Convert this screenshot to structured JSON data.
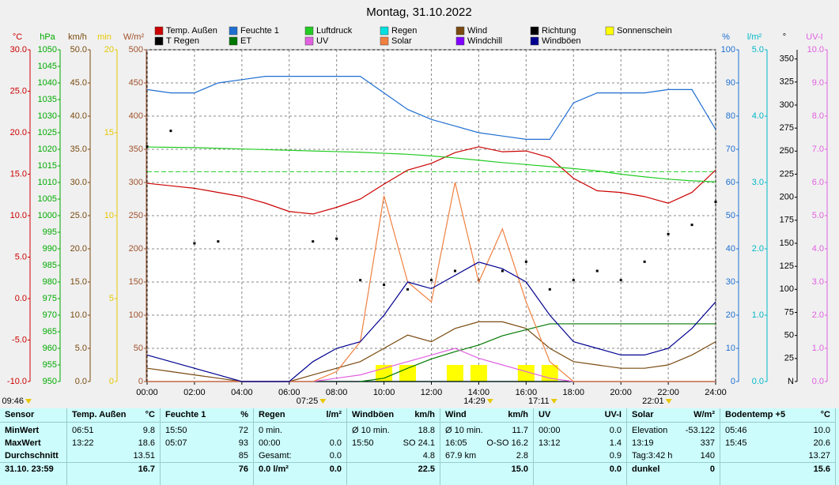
{
  "chart_data": {
    "type": "line",
    "title": "Montag, 31.10.2022",
    "x": [
      0,
      1,
      2,
      3,
      4,
      5,
      6,
      7,
      8,
      9,
      10,
      11,
      12,
      13,
      14,
      15,
      16,
      17,
      18,
      19,
      20,
      21,
      22,
      23,
      24
    ],
    "xlim": [
      0,
      24
    ],
    "xticks": [
      {
        "value": 0,
        "label": "00:00"
      },
      {
        "value": 2,
        "label": "02:00"
      },
      {
        "value": 4,
        "label": "04:00"
      },
      {
        "value": 6,
        "label": "06:00"
      },
      {
        "value": 8,
        "label": "08:00"
      },
      {
        "value": 10,
        "label": "10:00"
      },
      {
        "value": 12,
        "label": "12:00"
      },
      {
        "value": 14,
        "label": "14:00"
      },
      {
        "value": 16,
        "label": "16:00"
      },
      {
        "value": 18,
        "label": "18:00"
      },
      {
        "value": 20,
        "label": "20:00"
      },
      {
        "value": 22,
        "label": "22:00"
      },
      {
        "value": 24,
        "label": "24:00"
      }
    ],
    "grid": true,
    "axes": [
      {
        "id": "temp",
        "side": "left",
        "label": "°C",
        "color": "#cc0000",
        "lim": [
          -10,
          30
        ],
        "ticks": [
          {
            "value": -10,
            "label": "-10.0"
          },
          {
            "value": -5,
            "label": "-5.0"
          },
          {
            "value": 0,
            "label": "0.0"
          },
          {
            "value": 5,
            "label": "5.0"
          },
          {
            "value": 10,
            "label": "10.0"
          },
          {
            "value": 15,
            "label": "15.0"
          },
          {
            "value": 20,
            "label": "20.0"
          },
          {
            "value": 25,
            "label": "25.0"
          },
          {
            "value": 30,
            "label": "30.0"
          }
        ]
      },
      {
        "id": "press",
        "side": "left",
        "label": "hPa",
        "color": "#00aa00",
        "lim": [
          950,
          1050
        ],
        "ticks": [
          950,
          955,
          960,
          965,
          970,
          975,
          980,
          985,
          990,
          995,
          1000,
          1005,
          1010,
          1015,
          1020,
          1025,
          1030,
          1035,
          1040,
          1045,
          1050
        ],
        "reference": 1013.25
      },
      {
        "id": "speed",
        "side": "left",
        "label": "km/h",
        "color": "#7a4a10",
        "lim": [
          0,
          50
        ],
        "ticks": [
          {
            "value": 0,
            "label": "0.0"
          },
          {
            "value": 5,
            "label": "5.0"
          },
          {
            "value": 10,
            "label": "10.0"
          },
          {
            "value": 15,
            "label": "15.0"
          },
          {
            "value": 20,
            "label": "20.0"
          },
          {
            "value": 25,
            "label": "25.0"
          },
          {
            "value": 30,
            "label": "30.0"
          },
          {
            "value": 35,
            "label": "35.0"
          },
          {
            "value": 40,
            "label": "40.0"
          },
          {
            "value": 45,
            "label": "45.0"
          },
          {
            "value": 50,
            "label": "50.0"
          }
        ]
      },
      {
        "id": "min",
        "side": "left",
        "label": "min",
        "color": "#e6c800",
        "lim": [
          0,
          20
        ],
        "ticks": [
          0,
          5,
          10,
          15,
          20
        ]
      },
      {
        "id": "solar",
        "side": "left",
        "label": "W/m²",
        "color": "#a0522d",
        "lim": [
          0,
          500
        ],
        "ticks": [
          0,
          50,
          100,
          150,
          200,
          250,
          300,
          350,
          400,
          450,
          500
        ]
      },
      {
        "id": "hum",
        "side": "right",
        "label": "%",
        "color": "#1e6fd0",
        "lim": [
          0,
          100
        ],
        "ticks": [
          0,
          10,
          20,
          30,
          40,
          50,
          60,
          70,
          80,
          90,
          100
        ],
        "grid": true
      },
      {
        "id": "rain",
        "side": "right",
        "label": "l/m²",
        "color": "#00b8c8",
        "lim": [
          0,
          5
        ],
        "ticks": [
          {
            "value": 0,
            "label": "0.0"
          },
          {
            "value": 1,
            "label": "1.0"
          },
          {
            "value": 2,
            "label": "2.0"
          },
          {
            "value": 3,
            "label": "3.0"
          },
          {
            "value": 4,
            "label": "4.0"
          },
          {
            "value": 5,
            "label": "5.0"
          }
        ]
      },
      {
        "id": "dir",
        "side": "right",
        "label": "°",
        "color": "#000000",
        "lim": [
          0,
          360
        ],
        "ticks": [
          {
            "value": 0,
            "label": "N"
          },
          25,
          50,
          75,
          100,
          125,
          150,
          175,
          200,
          225,
          250,
          275,
          300,
          325,
          350
        ]
      },
      {
        "id": "uv",
        "side": "right",
        "label": "UV-I",
        "color": "#e060e0",
        "lim": [
          0,
          10
        ],
        "ticks": [
          {
            "value": 0,
            "label": "0.0"
          },
          {
            "value": 1,
            "label": "1.0"
          },
          {
            "value": 2,
            "label": "2.0"
          },
          {
            "value": 3,
            "label": "3.0"
          },
          {
            "value": 4,
            "label": "4.0"
          },
          {
            "value": 5,
            "label": "5.0"
          },
          {
            "value": 6,
            "label": "6.0"
          },
          {
            "value": 7,
            "label": "7.0"
          },
          {
            "value": 8,
            "label": "8.0"
          },
          {
            "value": 9,
            "label": "9.0"
          },
          {
            "value": 10,
            "label": "10.0"
          }
        ]
      }
    ],
    "series": [
      {
        "name": "Temp. Außen",
        "color": "#cc0000",
        "axis": "temp",
        "type": "line",
        "values": [
          13.9,
          13.6,
          13.3,
          12.8,
          12.3,
          11.5,
          10.5,
          10.2,
          11,
          12,
          13.8,
          15.5,
          16.3,
          17.6,
          18.3,
          17.7,
          17.8,
          17,
          14.5,
          13,
          12.8,
          12.3,
          11.5,
          12.8,
          15.5
        ]
      },
      {
        "name": "Feuchte 1",
        "color": "#1e6fd0",
        "axis": "hum",
        "type": "line",
        "values": [
          88,
          87,
          87,
          90,
          91,
          92,
          92,
          92,
          92,
          92,
          87,
          82,
          79,
          77,
          75,
          74,
          73,
          73,
          84,
          87,
          87,
          87,
          88,
          88,
          76
        ]
      },
      {
        "name": "Luftdruck",
        "color": "#22cc22",
        "axis": "press",
        "type": "line",
        "values": [
          1020.7,
          1020.6,
          1020.5,
          1020.3,
          1020.1,
          1019.9,
          1019.7,
          1019.5,
          1019.3,
          1019.1,
          1018.8,
          1018.5,
          1018,
          1017.4,
          1016.7,
          1016,
          1015.4,
          1014.8,
          1014.2,
          1013.5,
          1012.5,
          1011.7,
          1011,
          1010.5,
          1010.2
        ]
      },
      {
        "name": "Regen",
        "color": "#00e0e0",
        "axis": "rain",
        "type": "line",
        "values": [
          0,
          0,
          0,
          0,
          0,
          0,
          0,
          0,
          0,
          0,
          0,
          0,
          0,
          0,
          0,
          0,
          0,
          0,
          0,
          0,
          0,
          0,
          0,
          0,
          0
        ]
      },
      {
        "name": "Wind",
        "color": "#7a4a10",
        "axis": "speed",
        "type": "line",
        "values": [
          2,
          1.5,
          1,
          0.5,
          0,
          0,
          0,
          1,
          2,
          3,
          5,
          7,
          6,
          8,
          9,
          9,
          8,
          5,
          3,
          2.5,
          2,
          2,
          2.5,
          4,
          6
        ]
      },
      {
        "name": "Richtung",
        "color": "#000000",
        "axis": "dir",
        "type": "scatter",
        "values": [
          255,
          272,
          150,
          152,
          null,
          null,
          null,
          152,
          155,
          110,
          105,
          100,
          110,
          120,
          110,
          120,
          130,
          100,
          110,
          120,
          110,
          130,
          160,
          170,
          195
        ]
      },
      {
        "name": "Sonnenschein",
        "color": "#ffff00",
        "axis": "min",
        "type": "bar",
        "values": [
          0,
          0,
          0,
          0,
          0,
          0,
          0,
          0,
          0,
          0,
          1,
          1,
          0,
          1,
          1,
          0,
          1,
          1,
          0,
          0,
          0,
          0,
          0,
          0,
          0
        ]
      },
      {
        "name": "T Regen",
        "color": "#000000",
        "axis": "rain",
        "type": "line",
        "values": [
          0,
          0,
          0,
          0,
          0,
          0,
          0,
          0,
          0,
          0,
          0,
          0,
          0,
          0,
          0,
          0,
          0,
          0,
          0,
          0,
          0,
          0,
          0,
          0,
          0
        ]
      },
      {
        "name": "ET",
        "color": "#007700",
        "axis": "rain",
        "type": "line",
        "values": [
          null,
          null,
          null,
          null,
          null,
          null,
          null,
          null,
          null,
          0,
          0.05,
          0.2,
          0.34,
          0.45,
          0.55,
          0.69,
          0.78,
          0.87,
          0.87,
          0.87,
          0.87,
          0.87,
          0.87,
          0.87,
          0.87
        ]
      },
      {
        "name": "UV",
        "color": "#e060e0",
        "axis": "uv",
        "type": "line",
        "values": [
          0,
          0,
          0,
          0,
          0,
          0,
          0,
          0,
          0.1,
          0.2,
          0.4,
          0.6,
          0.8,
          1,
          0.7,
          0.5,
          0.3,
          0.1,
          0,
          0,
          0,
          0,
          0,
          0,
          0
        ]
      },
      {
        "name": "Solar",
        "color": "#f08040",
        "axis": "solar",
        "type": "line",
        "values": [
          0,
          0,
          0,
          0,
          0,
          0,
          0,
          0,
          15,
          60,
          280,
          150,
          120,
          300,
          150,
          230,
          120,
          30,
          0,
          0,
          0,
          0,
          0,
          0,
          0
        ]
      },
      {
        "name": "Windchill",
        "color": "#8000ff",
        "axis": "temp",
        "type": "line",
        "values": [
          null,
          null,
          null,
          null,
          null,
          null,
          null,
          null,
          null,
          null,
          null,
          null,
          null,
          null,
          null,
          null,
          null,
          null,
          null,
          null,
          null,
          null,
          null,
          null,
          null
        ]
      },
      {
        "name": "Windböen",
        "color": "#000090",
        "axis": "speed",
        "type": "line",
        "values": [
          4,
          3,
          2,
          1,
          0,
          0,
          0,
          3,
          5,
          6,
          10,
          15,
          14,
          16,
          18,
          17,
          15,
          10,
          6,
          5,
          4,
          4,
          5,
          8,
          12
        ]
      }
    ],
    "annotations": [
      {
        "label": "09:46"
      },
      {
        "label": "07:25",
        "x": 7.42
      },
      {
        "label": "14:29",
        "x": 14.48
      },
      {
        "label": "17:11",
        "x": 17.18
      },
      {
        "label": "22:01",
        "x": 22.02
      }
    ]
  },
  "table": {
    "row_labels": [
      "Sensor",
      "MinWert",
      "MaxWert",
      "Durchschnitt",
      "31.10. 23:59"
    ],
    "groups": [
      {
        "name": "Temp. Außen",
        "unit": "°C",
        "rows": [
          {
            "left": "06:51",
            "right": "9.8"
          },
          {
            "left": "13:22",
            "right": "18.6"
          },
          {
            "right": "13.51"
          },
          {
            "right": "16.7"
          }
        ]
      },
      {
        "name": "Feuchte 1",
        "unit": "%",
        "rows": [
          {
            "left": "15:50",
            "right": "72"
          },
          {
            "left": "05:07",
            "right": "93"
          },
          {
            "right": "85"
          },
          {
            "right": "76"
          }
        ]
      },
      {
        "name": "Regen",
        "unit": "l/m²",
        "rows": [
          {
            "left": "0 min."
          },
          {
            "left": "00:00",
            "right": "0.0"
          },
          {
            "left": "Gesamt:",
            "right": "0.0"
          },
          {
            "left": "0.0 l/m²",
            "right": "0.0"
          }
        ]
      },
      {
        "name": "Windböen",
        "unit": "km/h",
        "rows": [
          {
            "left": "Ø 10 min.",
            "right": "18.8"
          },
          {
            "left": "15:50",
            "right": "SO 24.1"
          },
          {
            "right": "4.8"
          },
          {
            "right": "22.5"
          }
        ]
      },
      {
        "name": "Wind",
        "unit": "km/h",
        "rows": [
          {
            "left": "Ø 10 min.",
            "right": "11.7"
          },
          {
            "left": "16:05",
            "right": "O-SO 16.2"
          },
          {
            "left": "67.9 km",
            "right": "2.8"
          },
          {
            "right": "15.0"
          }
        ]
      },
      {
        "name": "UV",
        "unit": "UV-I",
        "rows": [
          {
            "left": "00:00",
            "right": "0.0"
          },
          {
            "left": "13:12",
            "right": "1.4"
          },
          {
            "right": "0.9"
          },
          {
            "right": "0.0"
          }
        ]
      },
      {
        "name": "Solar",
        "unit": "W/m²",
        "rows": [
          {
            "left": "Elevation",
            "right": "-53.122"
          },
          {
            "left": "13:19",
            "right": "337"
          },
          {
            "left": "Tag:3:42 h",
            "right": "140"
          },
          {
            "left": "dunkel",
            "right": "0"
          }
        ]
      },
      {
        "name": "Bodentemp +5",
        "unit": "°C",
        "rows": [
          {
            "left": "05:46",
            "right": "10.0"
          },
          {
            "left": "15:45",
            "right": "20.6"
          },
          {
            "right": "13.27"
          },
          {
            "right": "15.6"
          }
        ]
      }
    ]
  }
}
